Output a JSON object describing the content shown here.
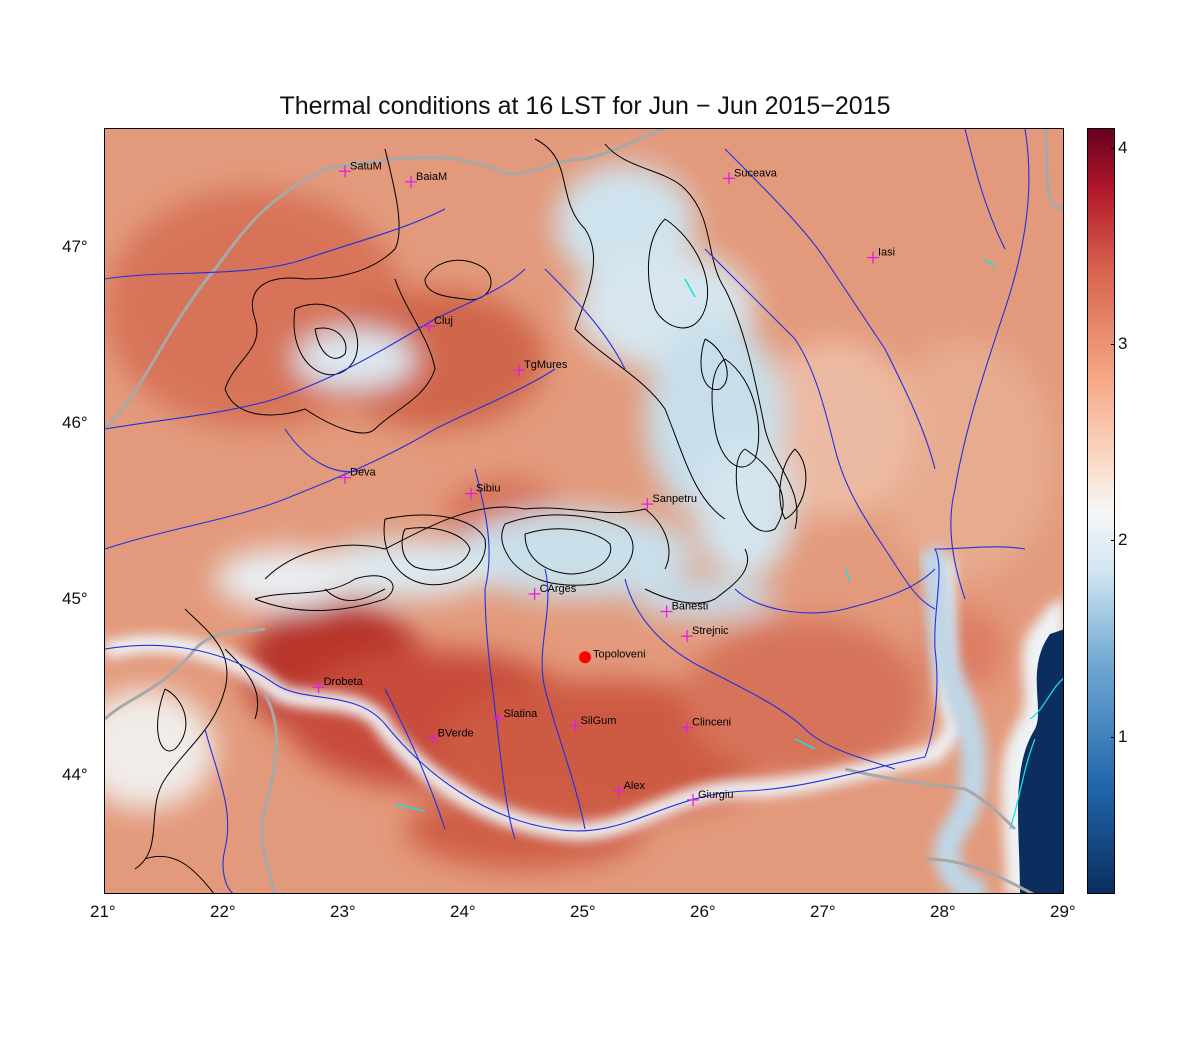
{
  "title": "Thermal conditions at 16 LST for Jun − Jun  2015−2015",
  "axes": {
    "x_ticks": [
      "21°",
      "22°",
      "23°",
      "24°",
      "25°",
      "26°",
      "27°",
      "28°",
      "29°"
    ],
    "y_ticks": [
      "44°",
      "45°",
      "46°",
      "47°"
    ]
  },
  "colorbar": {
    "ticks": [
      "1",
      "2",
      "3",
      "4"
    ],
    "min": 0.2,
    "max": 4.1
  },
  "cities": [
    {
      "name": "SatuM",
      "lon": 23.0,
      "lat": 47.44
    },
    {
      "name": "BaiaM",
      "lon": 23.55,
      "lat": 47.38
    },
    {
      "name": "Suceava",
      "lon": 26.2,
      "lat": 47.4
    },
    {
      "name": "Iasi",
      "lon": 27.4,
      "lat": 46.95
    },
    {
      "name": "Cluj",
      "lon": 23.7,
      "lat": 46.56
    },
    {
      "name": "TgMures",
      "lon": 24.45,
      "lat": 46.31
    },
    {
      "name": "Deva",
      "lon": 23.0,
      "lat": 45.7
    },
    {
      "name": "Sibiu",
      "lon": 24.05,
      "lat": 45.61
    },
    {
      "name": "Sanpetru",
      "lon": 25.52,
      "lat": 45.55
    },
    {
      "name": "CArges",
      "lon": 24.58,
      "lat": 45.04
    },
    {
      "name": "Banesti",
      "lon": 25.68,
      "lat": 44.94
    },
    {
      "name": "Strejnic",
      "lon": 25.85,
      "lat": 44.8
    },
    {
      "name": "Drobeta",
      "lon": 22.78,
      "lat": 44.51
    },
    {
      "name": "Slatina",
      "lon": 24.28,
      "lat": 44.33
    },
    {
      "name": "SilGum",
      "lon": 24.92,
      "lat": 44.29
    },
    {
      "name": "Clinceni",
      "lon": 25.85,
      "lat": 44.28
    },
    {
      "name": "BVerde",
      "lon": 23.73,
      "lat": 44.22
    },
    {
      "name": "Alex",
      "lon": 25.28,
      "lat": 43.92
    },
    {
      "name": "Giurgiu",
      "lon": 25.9,
      "lat": 43.87
    }
  ],
  "marker": {
    "name": "Topoloveni",
    "lon": 25.0,
    "lat": 44.68,
    "color": "#ff0000"
  },
  "colors": {
    "city_marker": "#e020e0",
    "rivers": "#2030e0",
    "contours": "#000000",
    "borders": "#a8a8a8",
    "lakes": "#18e0e0"
  }
}
